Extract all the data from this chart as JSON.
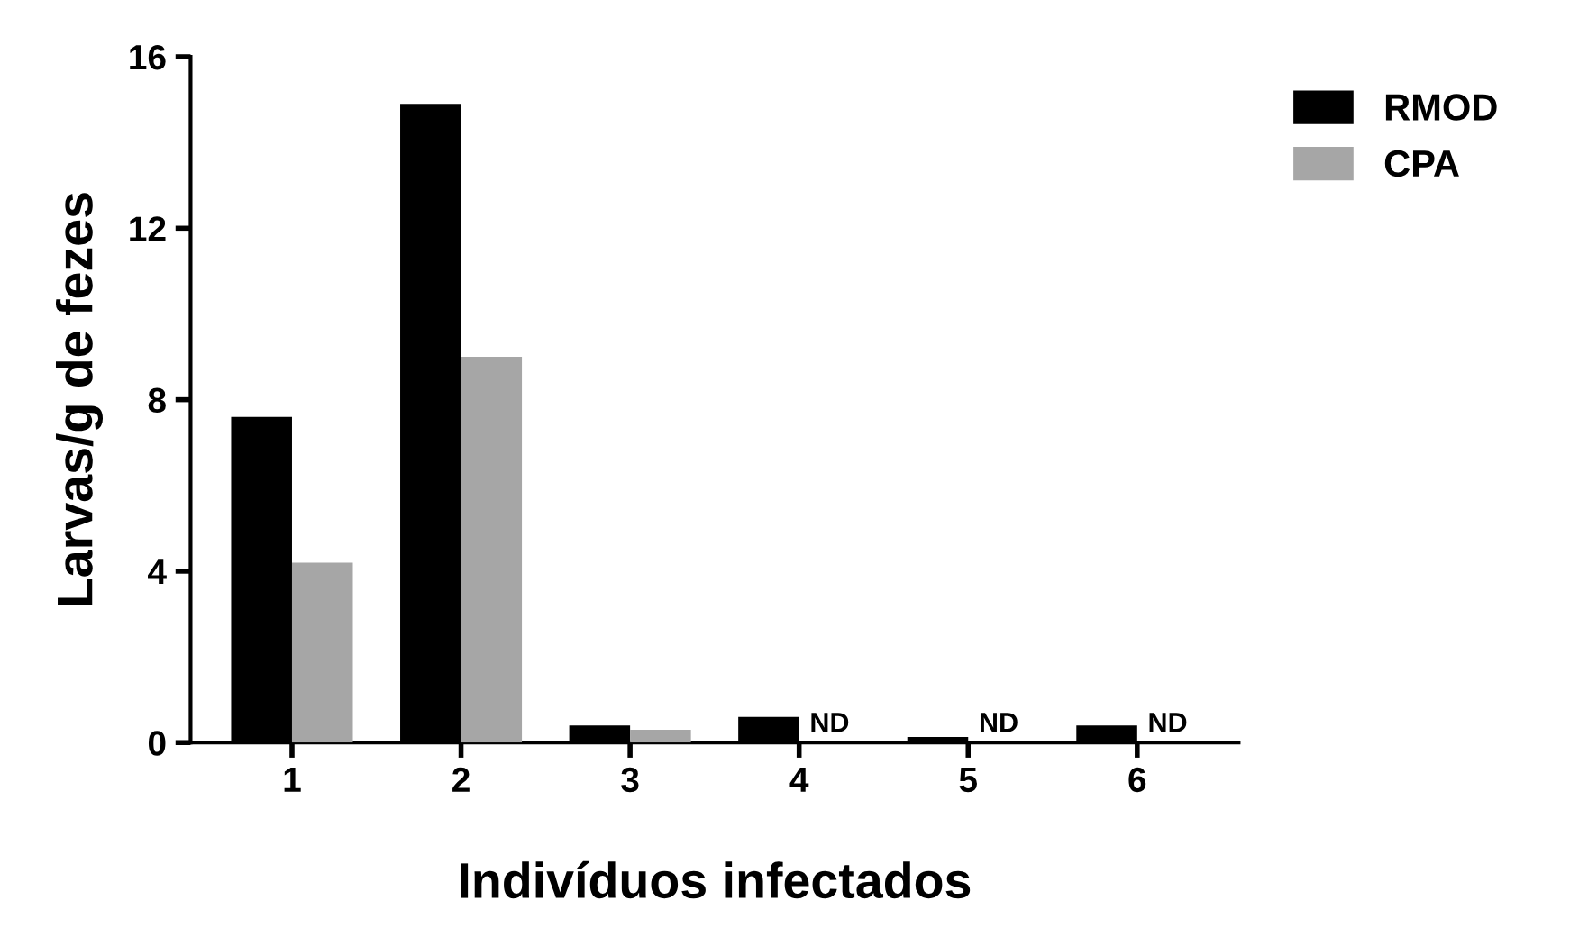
{
  "chart_data": {
    "type": "bar",
    "xlabel": "Indivíduos infectados",
    "ylabel": "Larvas/g de fezes",
    "categories": [
      "1",
      "2",
      "3",
      "4",
      "5",
      "6"
    ],
    "series": [
      {
        "name": "RMOD",
        "color": "#000000",
        "values": [
          7.6,
          14.9,
          0.4,
          0.6,
          0.13,
          0.4
        ]
      },
      {
        "name": "CPA",
        "color": "#a6a6a6",
        "values": [
          4.2,
          9.0,
          0.3,
          null,
          null,
          null
        ]
      }
    ],
    "annotations": [
      {
        "text": "ND",
        "x": "4",
        "y": 0
      },
      {
        "text": "ND",
        "x": "5",
        "y": 0
      },
      {
        "text": "ND",
        "x": "6",
        "y": 0
      }
    ],
    "ylim": [
      0,
      16
    ],
    "yticks": [
      0,
      4,
      8,
      12,
      16
    ],
    "grid": false,
    "legend": "top right"
  }
}
